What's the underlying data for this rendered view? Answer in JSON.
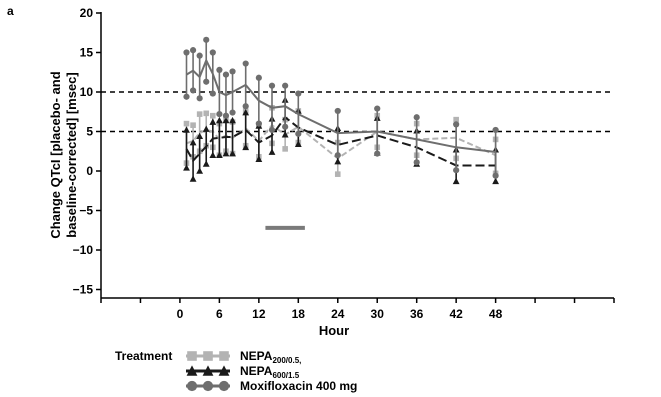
{
  "panel_label": "a",
  "legend": {
    "title": "Treatment",
    "entries": [
      {
        "main": "NEPA",
        "sub": "200/0.5,",
        "color": "#b3b3b3",
        "marker": "square"
      },
      {
        "main": "NEPA",
        "sub": "600/1.5",
        "color": "#1a1a1a",
        "marker": "triangle"
      },
      {
        "main": "Moxifloxacin 400 mg",
        "sub": "",
        "color": "#6e6e6e",
        "marker": "circle"
      }
    ]
  },
  "chart_data": {
    "type": "line",
    "title": "",
    "xlabel": "Hour",
    "ylabel": "Change QTcI [placebo- and baseline-corrected] [msec]",
    "ylabel_lines": [
      "Change QTcI [placebo- and",
      "baseline-corrected] [msec]"
    ],
    "xlim": [
      -12,
      66
    ],
    "ylim": [
      -16,
      21
    ],
    "x_ticks": [
      -12,
      -6,
      0,
      6,
      12,
      18,
      24,
      30,
      36,
      42,
      48,
      54,
      60,
      66
    ],
    "x_tick_labels": [
      "0",
      "6",
      "12",
      "18",
      "24",
      "30",
      "36",
      "42",
      "48"
    ],
    "x_tick_label_values": [
      0,
      6,
      12,
      18,
      24,
      30,
      36,
      42,
      48
    ],
    "y_ticks": [
      20,
      15,
      10,
      5,
      0,
      -5,
      -10,
      -15
    ],
    "y_tick_labels": [
      "20",
      "15",
      "10",
      "5",
      "0",
      "−5",
      "−10",
      "−15"
    ],
    "reference_lines": [
      10,
      5
    ],
    "reference_line_style": "dashed",
    "grid": false,
    "legend_position": "bottom-left",
    "annotation_bar": {
      "x_start": 13,
      "x_end": 19,
      "y": -7.2,
      "color": "#7a7a7a"
    },
    "series": [
      {
        "name": "NEPA 200/0.5",
        "color": "#b3b3b3",
        "marker": "square",
        "line_style": "dashed",
        "x": [
          1,
          2,
          3,
          4,
          5,
          6,
          7,
          8,
          10,
          12,
          14,
          16,
          18,
          24,
          30,
          36,
          42,
          48
        ],
        "y": [
          3.5,
          3.8,
          4.8,
          5.2,
          5.0,
          4.0,
          4.5,
          4.2,
          5.4,
          3.8,
          5.8,
          4.6,
          5.6,
          1.6,
          5.0,
          4.0,
          4.2,
          2.0
        ],
        "ci_low": [
          1.0,
          1.8,
          2.5,
          3.2,
          3.0,
          2.0,
          2.5,
          2.2,
          3.2,
          1.8,
          3.5,
          2.8,
          3.6,
          -0.4,
          3.0,
          2.0,
          1.6,
          -0.3
        ],
        "ci_high": [
          6.0,
          5.8,
          7.2,
          7.3,
          7.0,
          6.0,
          6.5,
          6.2,
          7.6,
          5.8,
          8.0,
          6.5,
          7.6,
          3.6,
          7.0,
          6.0,
          6.5,
          4.0
        ]
      },
      {
        "name": "NEPA 600/1.5",
        "color": "#1a1a1a",
        "marker": "triangle",
        "line_style": "dashed",
        "x": [
          1,
          2,
          3,
          4,
          5,
          6,
          7,
          8,
          10,
          12,
          14,
          16,
          18,
          24,
          30,
          36,
          42,
          48
        ],
        "y": [
          2.8,
          1.3,
          2.2,
          3.1,
          4.1,
          4.2,
          4.3,
          4.3,
          5.2,
          3.6,
          4.5,
          6.8,
          5.5,
          3.3,
          4.5,
          3.0,
          0.7,
          0.7
        ],
        "ci_low": [
          0.4,
          -1.0,
          0.0,
          0.9,
          2.0,
          2.0,
          2.2,
          2.2,
          3.0,
          1.5,
          2.4,
          4.6,
          3.4,
          1.2,
          2.3,
          0.9,
          -1.3,
          -1.3
        ],
        "ci_high": [
          5.2,
          3.6,
          4.4,
          5.3,
          6.2,
          6.4,
          6.4,
          6.4,
          7.4,
          5.7,
          6.6,
          9.0,
          7.6,
          5.4,
          6.7,
          5.1,
          2.7,
          2.7
        ]
      },
      {
        "name": "Moxifloxacin 400 mg",
        "color": "#6e6e6e",
        "marker": "circle",
        "line_style": "solid",
        "x": [
          1,
          2,
          3,
          4,
          5,
          6,
          7,
          8,
          10,
          12,
          14,
          16,
          18,
          24,
          30,
          36,
          42,
          48
        ],
        "y": [
          12.2,
          12.7,
          11.9,
          14.0,
          12.3,
          10.0,
          9.6,
          10.0,
          10.9,
          8.9,
          8.0,
          8.2,
          7.2,
          4.8,
          5.0,
          4.0,
          3.0,
          2.4
        ],
        "ci_low": [
          9.4,
          10.2,
          9.2,
          11.3,
          9.8,
          7.2,
          7.0,
          7.4,
          8.2,
          6.0,
          5.2,
          5.6,
          4.7,
          2.0,
          2.2,
          1.1,
          0.1,
          -0.6
        ],
        "ci_high": [
          15.0,
          15.3,
          14.6,
          16.6,
          15.0,
          12.8,
          12.2,
          12.6,
          13.6,
          11.8,
          10.8,
          10.8,
          9.8,
          7.6,
          7.9,
          6.8,
          5.9,
          5.2
        ]
      }
    ]
  }
}
